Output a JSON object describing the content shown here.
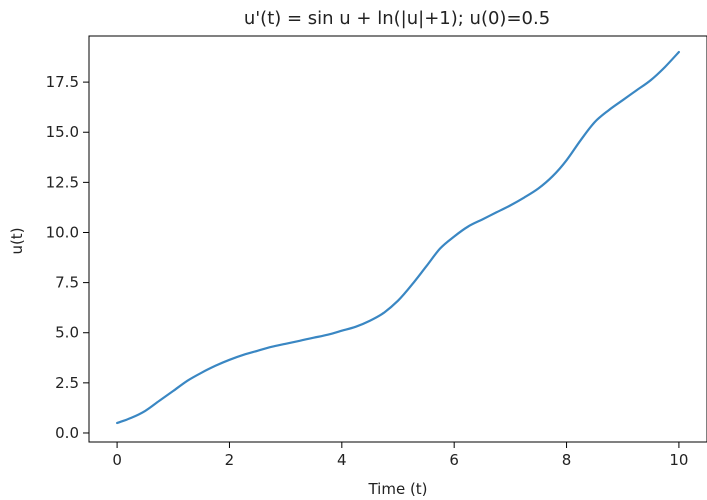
{
  "chart_data": {
    "type": "line",
    "title": "u'(t) = sin u + ln(|u|+1);   u(0)=0.5",
    "xlabel": "Time (t)",
    "ylabel": "u(t)",
    "xlim": [
      -0.5,
      10.5
    ],
    "ylim": [
      -0.45,
      19.8
    ],
    "x_ticks": [
      0,
      2,
      4,
      6,
      8,
      10
    ],
    "y_ticks": [
      0.0,
      2.5,
      5.0,
      7.5,
      10.0,
      12.5,
      15.0,
      17.5
    ],
    "x_tick_labels": [
      "0",
      "2",
      "4",
      "6",
      "8",
      "10"
    ],
    "y_tick_labels": [
      "0.0",
      "2.5",
      "5.0",
      "7.5",
      "10.0",
      "12.5",
      "15.0",
      "17.5"
    ],
    "grid": false,
    "legend": "none",
    "series": [
      {
        "color": "#3a87c3",
        "x": [
          0,
          0.25,
          0.5,
          0.75,
          1.0,
          1.25,
          1.5,
          1.75,
          2.0,
          2.25,
          2.5,
          2.75,
          3.0,
          3.25,
          3.5,
          3.75,
          4.0,
          4.25,
          4.5,
          4.75,
          5.0,
          5.25,
          5.5,
          5.75,
          6.0,
          6.25,
          6.5,
          6.75,
          7.0,
          7.25,
          7.5,
          7.75,
          8.0,
          8.25,
          8.5,
          8.75,
          9.0,
          9.25,
          9.5,
          9.75,
          10.0
        ],
        "values": [
          0.5,
          0.75,
          1.1,
          1.6,
          2.1,
          2.6,
          3.0,
          3.35,
          3.65,
          3.9,
          4.1,
          4.3,
          4.45,
          4.6,
          4.75,
          4.9,
          5.1,
          5.3,
          5.6,
          6.0,
          6.6,
          7.4,
          8.3,
          9.2,
          9.8,
          10.3,
          10.65,
          11.0,
          11.35,
          11.75,
          12.2,
          12.8,
          13.6,
          14.6,
          15.5,
          16.1,
          16.6,
          17.1,
          17.6,
          18.25,
          19.0
        ]
      }
    ]
  }
}
